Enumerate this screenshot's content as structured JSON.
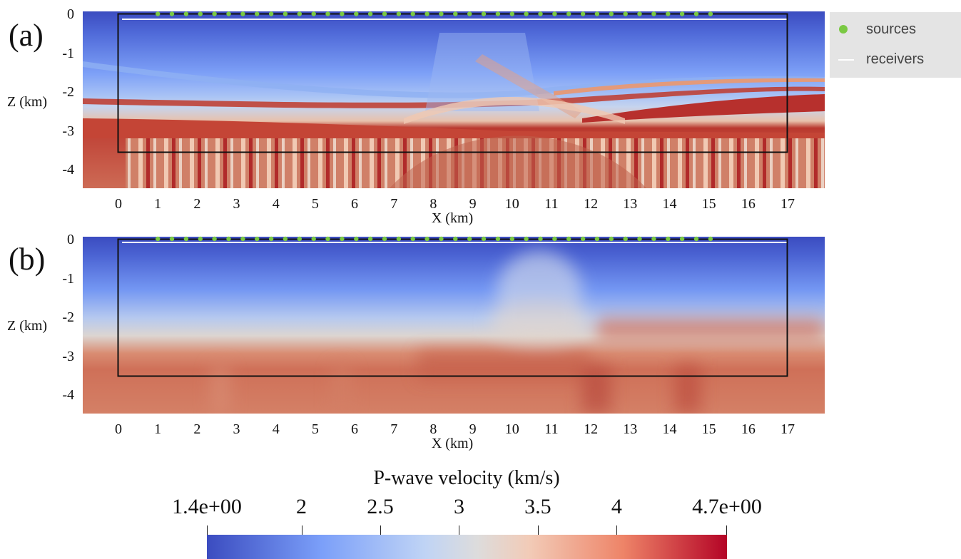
{
  "panels": [
    {
      "id": "a",
      "label": "(a)",
      "xlabel": "X (km)",
      "ylabel": "Z (km)",
      "xticks": [
        "0",
        "1",
        "2",
        "3",
        "4",
        "5",
        "6",
        "7",
        "8",
        "9",
        "10",
        "11",
        "12",
        "13",
        "14",
        "15",
        "16",
        "17"
      ],
      "yticks": [
        "0",
        "-1",
        "-2",
        "-3",
        "-4"
      ],
      "field": "true velocity model with sharp layered strata, faults and a central anticline"
    },
    {
      "id": "b",
      "label": "(b)",
      "xlabel": "X (km)",
      "ylabel": "Z (km)",
      "xticks": [
        "0",
        "1",
        "2",
        "3",
        "4",
        "5",
        "6",
        "7",
        "8",
        "9",
        "10",
        "11",
        "12",
        "13",
        "14",
        "15",
        "16",
        "17"
      ],
      "yticks": [
        "0",
        "-1",
        "-2",
        "-3",
        "-4"
      ],
      "field": "smoothed velocity model"
    }
  ],
  "legend": {
    "sources_label": "sources",
    "receivers_label": "receivers",
    "source_color": "#7ac943",
    "receiver_color": "#ffffff"
  },
  "sources": {
    "x_start_km": 1,
    "x_end_km": 15,
    "spacing_km": 0.36,
    "z_km": 0
  },
  "receivers": {
    "x_start_km": 0.1,
    "x_end_km": 17,
    "z_km": -0.15
  },
  "domain_box": {
    "x_min_km": 0,
    "x_max_km": 17,
    "z_min_km": -3.5,
    "z_max_km": 0
  },
  "colorbar": {
    "title": "P-wave velocity (km/s)",
    "min": 1.4,
    "max": 4.7,
    "tick_labels": [
      "1.4e+00",
      "2",
      "2.5",
      "3",
      "3.5",
      "4",
      "4.7e+00"
    ],
    "tick_values": [
      1.4,
      2,
      2.5,
      3,
      3.5,
      4,
      4.7
    ],
    "colormap": "coolwarm",
    "color_low": "#3b4cc0",
    "color_mid": "#dddcdc",
    "color_high": "#b40426"
  }
}
